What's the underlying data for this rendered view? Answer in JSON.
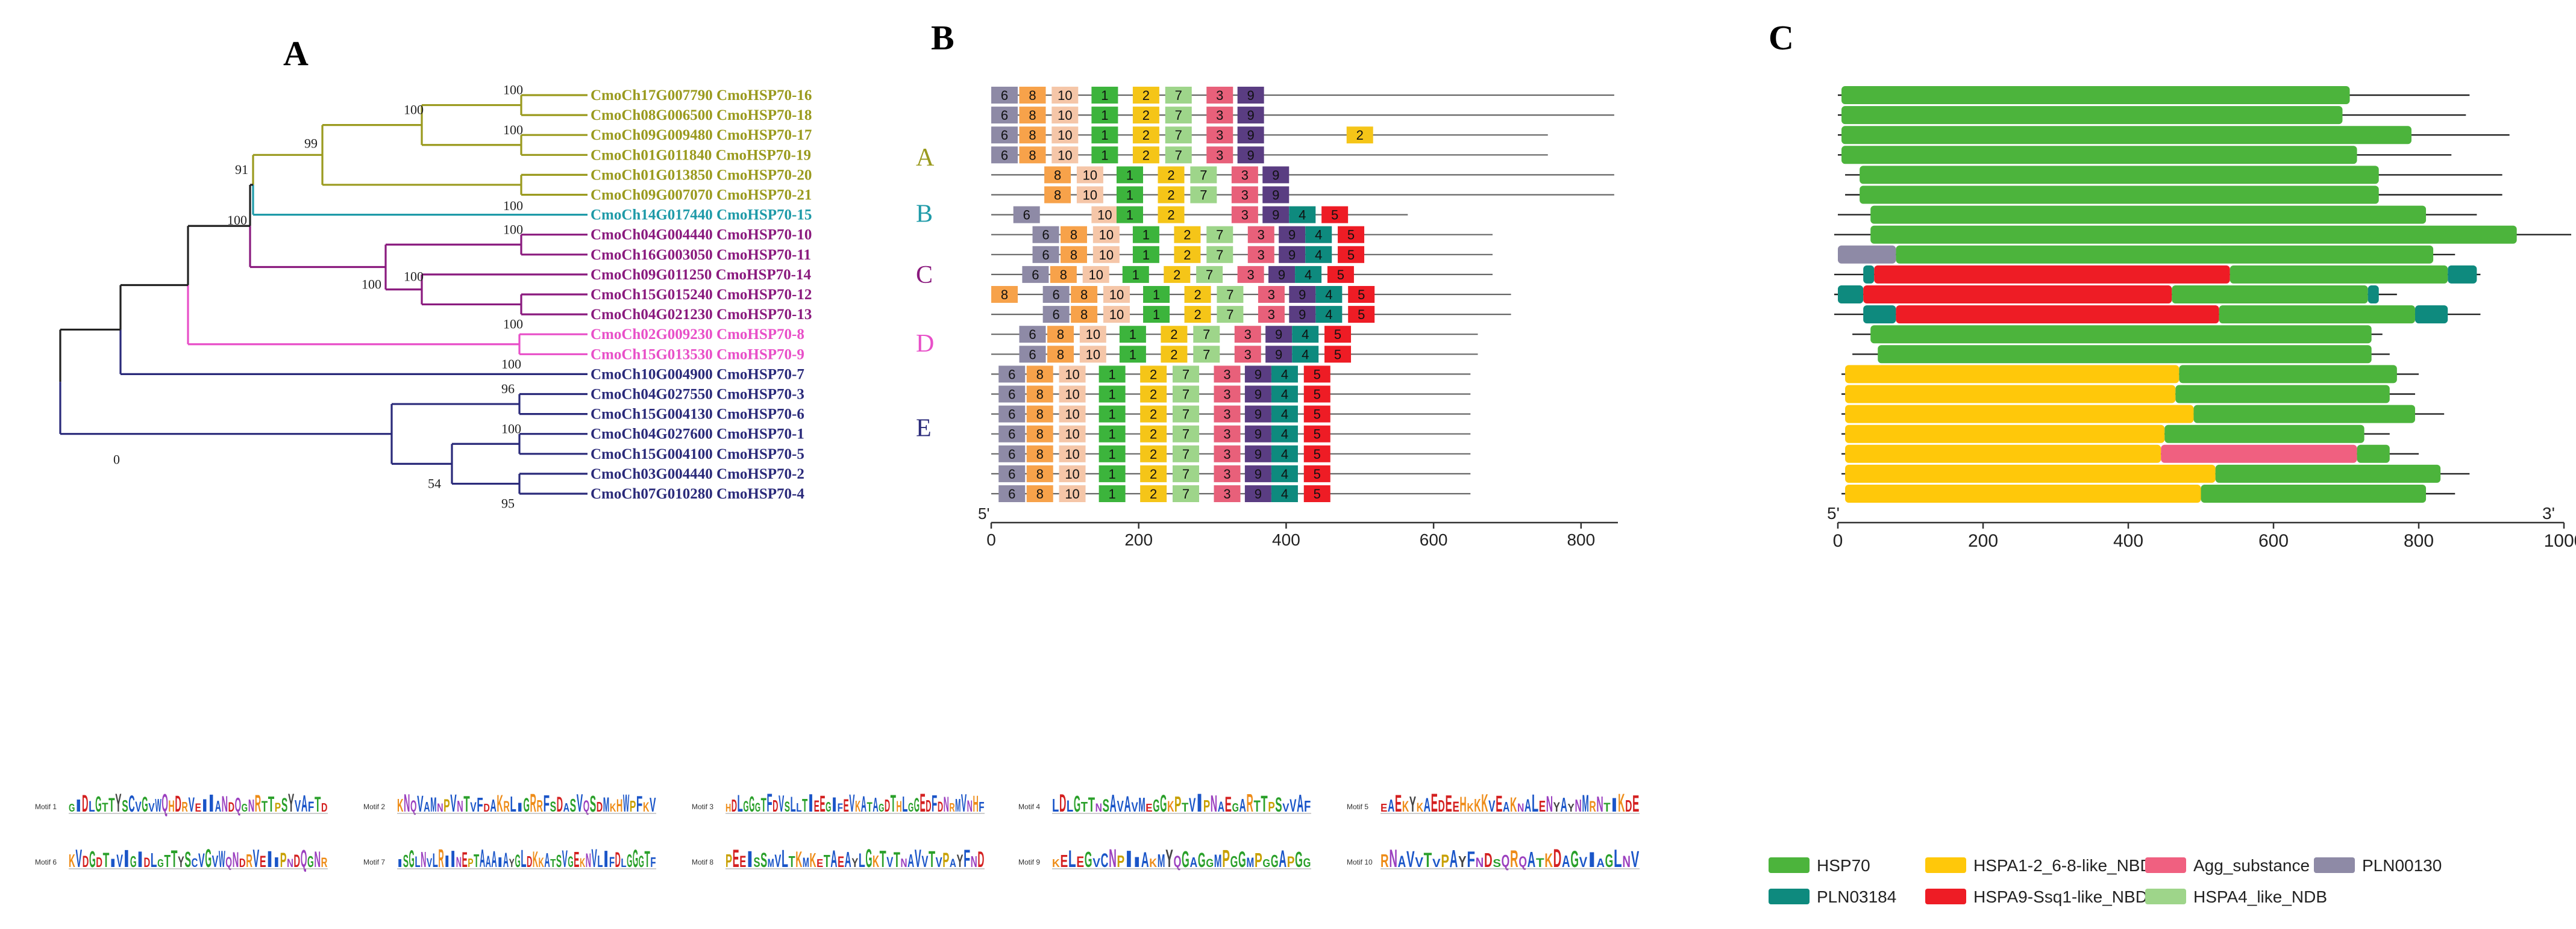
{
  "panels": {
    "a": "A",
    "b": "B",
    "c": "C"
  },
  "groups": [
    {
      "label": "A",
      "color": "#9a9a1e"
    },
    {
      "label": "B",
      "color": "#1e9aa8"
    },
    {
      "label": "C",
      "color": "#8a1a7e"
    },
    {
      "label": "D",
      "color": "#e84fc8"
    },
    {
      "label": "E",
      "color": "#2a2a7a"
    }
  ],
  "genes": [
    {
      "label": "CmoCh17G007790 CmoHSP70-16",
      "group": 0
    },
    {
      "label": "CmoCh08G006500 CmoHSP70-18",
      "group": 0
    },
    {
      "label": "CmoCh09G009480 CmoHSP70-17",
      "group": 0
    },
    {
      "label": "CmoCh01G011840 CmoHSP70-19",
      "group": 0
    },
    {
      "label": "CmoCh01G013850 CmoHSP70-20",
      "group": 0
    },
    {
      "label": "CmoCh09G007070 CmoHSP70-21",
      "group": 0
    },
    {
      "label": "CmoCh14G017440 CmoHSP70-15",
      "group": 1
    },
    {
      "label": "CmoCh04G004440 CmoHSP70-10",
      "group": 2
    },
    {
      "label": "CmoCh16G003050 CmoHSP70-11",
      "group": 2
    },
    {
      "label": "CmoCh09G011250 CmoHSP70-14",
      "group": 2
    },
    {
      "label": "CmoCh15G015240 CmoHSP70-12",
      "group": 2
    },
    {
      "label": "CmoCh04G021230 CmoHSP70-13",
      "group": 2
    },
    {
      "label": "CmoCh02G009230 CmoHSP70-8",
      "group": 3
    },
    {
      "label": "CmoCh15G013530 CmoHSP70-9",
      "group": 3
    },
    {
      "label": "CmoCh10G004900 CmoHSP70-7",
      "group": 4
    },
    {
      "label": "CmoCh04G027550 CmoHSP70-3",
      "group": 4
    },
    {
      "label": "CmoCh15G004130 CmoHSP70-6",
      "group": 4
    },
    {
      "label": "CmoCh04G027600 CmoHSP70-1",
      "group": 4
    },
    {
      "label": "CmoCh15G004100 CmoHSP70-5",
      "group": 4
    },
    {
      "label": "CmoCh03G004440 CmoHSP70-2",
      "group": 4
    },
    {
      "label": "CmoCh07G010280 CmoHSP70-4",
      "group": 4
    }
  ],
  "bootstrap": [
    "100",
    "100",
    "100",
    "100",
    "99",
    "100",
    "91",
    "100",
    "100",
    "100",
    "100",
    "100",
    "96",
    "100",
    "0",
    "54",
    "95"
  ],
  "motif_colors": {
    "1": "#3cb43c",
    "2": "#f5c518",
    "3": "#e8607a",
    "4": "#0e8a7e",
    "5": "#ee1c25",
    "6": "#8e8aa6",
    "7": "#9ed58a",
    "8": "#f7a24a",
    "9": "#5a3d82",
    "10": "#f5c6a8"
  },
  "motif_axis": {
    "ticks": [
      "0",
      "200",
      "400",
      "600",
      "800"
    ],
    "end_label": "5'",
    "max": 850
  },
  "motifs": [
    {
      "len": 845,
      "m": [
        [
          "6",
          0
        ],
        [
          "8",
          38
        ],
        [
          "10",
          82
        ],
        [
          "1",
          136
        ],
        [
          "2",
          192
        ],
        [
          "7",
          236
        ],
        [
          "3",
          292
        ],
        [
          "9",
          334
        ]
      ]
    },
    {
      "len": 845,
      "m": [
        [
          "6",
          0
        ],
        [
          "8",
          38
        ],
        [
          "10",
          82
        ],
        [
          "1",
          136
        ],
        [
          "2",
          192
        ],
        [
          "7",
          236
        ],
        [
          "3",
          292
        ],
        [
          "9",
          334
        ]
      ]
    },
    {
      "len": 755,
      "m": [
        [
          "6",
          0
        ],
        [
          "8",
          38
        ],
        [
          "10",
          82
        ],
        [
          "1",
          136
        ],
        [
          "2",
          192
        ],
        [
          "7",
          236
        ],
        [
          "3",
          292
        ],
        [
          "9",
          334
        ],
        [
          "2",
          482
        ]
      ]
    },
    {
      "len": 755,
      "m": [
        [
          "6",
          0
        ],
        [
          "8",
          38
        ],
        [
          "10",
          82
        ],
        [
          "1",
          136
        ],
        [
          "2",
          192
        ],
        [
          "7",
          236
        ],
        [
          "3",
          292
        ],
        [
          "9",
          334
        ]
      ]
    },
    {
      "len": 845,
      "m": [
        [
          "8",
          72
        ],
        [
          "10",
          116
        ],
        [
          "1",
          170
        ],
        [
          "2",
          226
        ],
        [
          "7",
          270
        ],
        [
          "3",
          326
        ],
        [
          "9",
          368
        ]
      ]
    },
    {
      "len": 845,
      "m": [
        [
          "8",
          72
        ],
        [
          "10",
          116
        ],
        [
          "1",
          170
        ],
        [
          "2",
          226
        ],
        [
          "7",
          270
        ],
        [
          "3",
          326
        ],
        [
          "9",
          368
        ]
      ]
    },
    {
      "len": 565,
      "m": [
        [
          "6",
          30
        ],
        [
          "10",
          136
        ],
        [
          "1",
          170
        ],
        [
          "2",
          226
        ],
        [
          "3",
          326
        ],
        [
          "9",
          368
        ],
        [
          "4",
          404
        ],
        [
          "5",
          448
        ]
      ]
    },
    {
      "len": 680,
      "m": [
        [
          "6",
          56
        ],
        [
          "8",
          94
        ],
        [
          "10",
          138
        ],
        [
          "1",
          192
        ],
        [
          "2",
          248
        ],
        [
          "7",
          292
        ],
        [
          "3",
          348
        ],
        [
          "9",
          390
        ],
        [
          "4",
          426
        ],
        [
          "5",
          470
        ]
      ]
    },
    {
      "len": 680,
      "m": [
        [
          "6",
          56
        ],
        [
          "8",
          94
        ],
        [
          "10",
          138
        ],
        [
          "1",
          192
        ],
        [
          "2",
          248
        ],
        [
          "7",
          292
        ],
        [
          "3",
          348
        ],
        [
          "9",
          390
        ],
        [
          "4",
          426
        ],
        [
          "5",
          470
        ]
      ]
    },
    {
      "len": 680,
      "m": [
        [
          "6",
          42
        ],
        [
          "8",
          80
        ],
        [
          "10",
          124
        ],
        [
          "1",
          178
        ],
        [
          "2",
          234
        ],
        [
          "7",
          278
        ],
        [
          "3",
          334
        ],
        [
          "9",
          376
        ],
        [
          "4",
          412
        ],
        [
          "5",
          456
        ]
      ]
    },
    {
      "len": 705,
      "m": [
        [
          "8",
          0
        ],
        [
          "6",
          70
        ],
        [
          "8",
          108
        ],
        [
          "10",
          152
        ],
        [
          "1",
          206
        ],
        [
          "2",
          262
        ],
        [
          "7",
          306
        ],
        [
          "3",
          362
        ],
        [
          "9",
          404
        ],
        [
          "4",
          440
        ],
        [
          "5",
          484
        ]
      ]
    },
    {
      "len": 705,
      "m": [
        [
          "6",
          70
        ],
        [
          "8",
          108
        ],
        [
          "10",
          152
        ],
        [
          "1",
          206
        ],
        [
          "2",
          262
        ],
        [
          "7",
          306
        ],
        [
          "3",
          362
        ],
        [
          "9",
          404
        ],
        [
          "4",
          440
        ],
        [
          "5",
          484
        ]
      ]
    },
    {
      "len": 660,
      "m": [
        [
          "6",
          38
        ],
        [
          "8",
          76
        ],
        [
          "10",
          120
        ],
        [
          "1",
          174
        ],
        [
          "2",
          230
        ],
        [
          "7",
          274
        ],
        [
          "3",
          330
        ],
        [
          "9",
          372
        ],
        [
          "4",
          408
        ],
        [
          "5",
          452
        ]
      ]
    },
    {
      "len": 660,
      "m": [
        [
          "6",
          38
        ],
        [
          "8",
          76
        ],
        [
          "10",
          120
        ],
        [
          "1",
          174
        ],
        [
          "2",
          230
        ],
        [
          "7",
          274
        ],
        [
          "3",
          330
        ],
        [
          "9",
          372
        ],
        [
          "4",
          408
        ],
        [
          "5",
          452
        ]
      ]
    },
    {
      "len": 650,
      "m": [
        [
          "6",
          10
        ],
        [
          "8",
          48
        ],
        [
          "10",
          92
        ],
        [
          "1",
          146
        ],
        [
          "2",
          202
        ],
        [
          "7",
          246
        ],
        [
          "3",
          302
        ],
        [
          "9",
          344
        ],
        [
          "4",
          380
        ],
        [
          "5",
          424
        ]
      ]
    },
    {
      "len": 650,
      "m": [
        [
          "6",
          10
        ],
        [
          "8",
          48
        ],
        [
          "10",
          92
        ],
        [
          "1",
          146
        ],
        [
          "2",
          202
        ],
        [
          "7",
          246
        ],
        [
          "3",
          302
        ],
        [
          "9",
          344
        ],
        [
          "4",
          380
        ],
        [
          "5",
          424
        ]
      ]
    },
    {
      "len": 650,
      "m": [
        [
          "6",
          10
        ],
        [
          "8",
          48
        ],
        [
          "10",
          92
        ],
        [
          "1",
          146
        ],
        [
          "2",
          202
        ],
        [
          "7",
          246
        ],
        [
          "3",
          302
        ],
        [
          "9",
          344
        ],
        [
          "4",
          380
        ],
        [
          "5",
          424
        ]
      ]
    },
    {
      "len": 650,
      "m": [
        [
          "6",
          10
        ],
        [
          "8",
          48
        ],
        [
          "10",
          92
        ],
        [
          "1",
          146
        ],
        [
          "2",
          202
        ],
        [
          "7",
          246
        ],
        [
          "3",
          302
        ],
        [
          "9",
          344
        ],
        [
          "4",
          380
        ],
        [
          "5",
          424
        ]
      ]
    },
    {
      "len": 650,
      "m": [
        [
          "6",
          10
        ],
        [
          "8",
          48
        ],
        [
          "10",
          92
        ],
        [
          "1",
          146
        ],
        [
          "2",
          202
        ],
        [
          "7",
          246
        ],
        [
          "3",
          302
        ],
        [
          "9",
          344
        ],
        [
          "4",
          380
        ],
        [
          "5",
          424
        ]
      ]
    },
    {
      "len": 650,
      "m": [
        [
          "6",
          10
        ],
        [
          "8",
          48
        ],
        [
          "10",
          92
        ],
        [
          "1",
          146
        ],
        [
          "2",
          202
        ],
        [
          "7",
          246
        ],
        [
          "3",
          302
        ],
        [
          "9",
          344
        ],
        [
          "4",
          380
        ],
        [
          "5",
          424
        ]
      ]
    },
    {
      "len": 650,
      "m": [
        [
          "6",
          10
        ],
        [
          "8",
          48
        ],
        [
          "10",
          92
        ],
        [
          "1",
          146
        ],
        [
          "2",
          202
        ],
        [
          "7",
          246
        ],
        [
          "3",
          302
        ],
        [
          "9",
          344
        ],
        [
          "4",
          380
        ],
        [
          "5",
          424
        ]
      ]
    }
  ],
  "domain_colors": {
    "HSP70": "#4cb43c",
    "PLN03184": "#0e8a7e",
    "HSPA1-2_6-8-like_NBD": "#ffc80a",
    "HSPA9-Ssq1-like_NBD": "#ee1c25",
    "Agg_substance": "#f06080",
    "HSPA4_like_NDB": "#9ed58a",
    "PLN00130": "#8e8aa6"
  },
  "domain_axis": {
    "ticks": [
      "0",
      "200",
      "400",
      "600",
      "800",
      "1000"
    ],
    "start_label": "5'",
    "end_label": "3'",
    "max": 1000
  },
  "domains": [
    {
      "line": [
        0,
        870
      ],
      "d": [
        [
          "HSP70",
          5,
          705
        ]
      ]
    },
    {
      "line": [
        0,
        865
      ],
      "d": [
        [
          "HSP70",
          5,
          695
        ]
      ]
    },
    {
      "line": [
        0,
        925
      ],
      "d": [
        [
          "HSP70",
          5,
          790
        ]
      ]
    },
    {
      "line": [
        0,
        845
      ],
      "d": [
        [
          "HSP70",
          5,
          715
        ]
      ]
    },
    {
      "line": [
        10,
        915
      ],
      "d": [
        [
          "HSP70",
          30,
          745
        ]
      ]
    },
    {
      "line": [
        10,
        915
      ],
      "d": [
        [
          "HSP70",
          30,
          745
        ]
      ]
    },
    {
      "line": [
        0,
        880
      ],
      "d": [
        [
          "HSP70",
          45,
          810
        ]
      ]
    },
    {
      "line": [
        -5,
        1010
      ],
      "d": [
        [
          "HSP70",
          45,
          935
        ]
      ]
    },
    {
      "line": [
        0,
        850
      ],
      "d": [
        [
          "PLN00130",
          0,
          80
        ],
        [
          "HSP70",
          80,
          820
        ]
      ]
    },
    {
      "line": [
        -5,
        885
      ],
      "d": [
        [
          "PLN03184",
          35,
          50
        ],
        [
          "HSPA9-Ssq1-like_NBD",
          50,
          540
        ],
        [
          "HSP70",
          540,
          840
        ],
        [
          "PLN03184",
          840,
          880
        ]
      ]
    },
    {
      "line": [
        -5,
        770
      ],
      "d": [
        [
          "PLN03184",
          0,
          35
        ],
        [
          "HSPA9-Ssq1-like_NBD",
          35,
          460
        ],
        [
          "HSP70",
          460,
          730
        ],
        [
          "PLN03184",
          730,
          745
        ]
      ]
    },
    {
      "line": [
        -5,
        885
      ],
      "d": [
        [
          "PLN03184",
          35,
          80
        ],
        [
          "HSPA9-Ssq1-like_NBD",
          80,
          525
        ],
        [
          "HSP70",
          525,
          795
        ],
        [
          "PLN03184",
          795,
          840
        ]
      ]
    },
    {
      "line": [
        20,
        750
      ],
      "d": [
        [
          "HSP70",
          45,
          735
        ]
      ]
    },
    {
      "line": [
        20,
        760
      ],
      "d": [
        [
          "HSP70",
          55,
          735
        ]
      ]
    },
    {
      "line": [
        5,
        800
      ],
      "d": [
        [
          "HSPA1-2_6-8-like_NBD",
          10,
          470
        ],
        [
          "HSP70",
          470,
          770
        ]
      ]
    },
    {
      "line": [
        5,
        795
      ],
      "d": [
        [
          "HSPA1-2_6-8-like_NBD",
          10,
          465
        ],
        [
          "HSP70",
          465,
          760
        ]
      ]
    },
    {
      "line": [
        5,
        835
      ],
      "d": [
        [
          "HSPA1-2_6-8-like_NBD",
          10,
          490
        ],
        [
          "HSP70",
          490,
          795
        ]
      ]
    },
    {
      "line": [
        5,
        760
      ],
      "d": [
        [
          "HSPA1-2_6-8-like_NBD",
          10,
          450
        ],
        [
          "HSP70",
          450,
          725
        ]
      ]
    },
    {
      "line": [
        5,
        800
      ],
      "d": [
        [
          "HSPA1-2_6-8-like_NBD",
          10,
          445
        ],
        [
          "Agg_substance",
          445,
          715
        ],
        [
          "HSP70",
          715,
          760
        ]
      ]
    },
    {
      "line": [
        5,
        870
      ],
      "d": [
        [
          "HSPA1-2_6-8-like_NBD",
          10,
          520
        ],
        [
          "HSP70",
          520,
          830
        ]
      ]
    },
    {
      "line": [
        5,
        850
      ],
      "d": [
        [
          "HSPA1-2_6-8-like_NBD",
          10,
          500
        ],
        [
          "HSP70",
          500,
          810
        ]
      ]
    }
  ],
  "legend": [
    "HSP70",
    "PLN03184",
    "HSPA1-2_6-8-like_NBD",
    "HSPA9-Ssq1-like_NBD",
    "Agg_substance",
    "HSPA4_like_NDB",
    "PLN00130"
  ],
  "logo_strip": [
    {
      "title": "Motif 1",
      "seq": "GIDLGTTYSCVGVWQHDRVEIIANDQGNRTTPSYVAFTD"
    },
    {
      "title": "Motif 2",
      "seq": "KNQVAMNPVNTVFDAKRLIGRRFSDASVQSDMKHWPFKV"
    },
    {
      "title": "Motif 3",
      "seq": "HDLGGGTFDVSLLTIEEGIFEVKATAGDTHLGGEDFDNRMVNHF"
    },
    {
      "title": "Motif 4",
      "seq": "LDLGTTNSAVAVMEGGKPTVIPNAEGARTTPSVVAF"
    },
    {
      "title": "Motif 5",
      "seq": "EAEKYKAEDEEHKKKVEAKNALENYAYNMRNTIKDE"
    },
    {
      "title": "Motif 6",
      "seq": "KVDGDTIVIGIDLGTTYSCVGVWQNDRVEIIPNDQGNR"
    },
    {
      "title": "Motif 7",
      "seq": "ISGLNVLRIINEPTAAAIAYGLDKKATSVGEKNVLIFDLGGGTF"
    },
    {
      "title": "Motif 8",
      "seq": "PEEISSMVLTKMKETAEAYLGKTVTNAVVTVPAYFND"
    },
    {
      "title": "Motif 9",
      "seq": "KELEGVCNPIIAKMYQGAGGMPGGMPGGAPGG"
    },
    {
      "title": "Motif 10",
      "seq": "RNAVVTVPAYFNDSQRQATKDAGVIAGLNV"
    }
  ]
}
